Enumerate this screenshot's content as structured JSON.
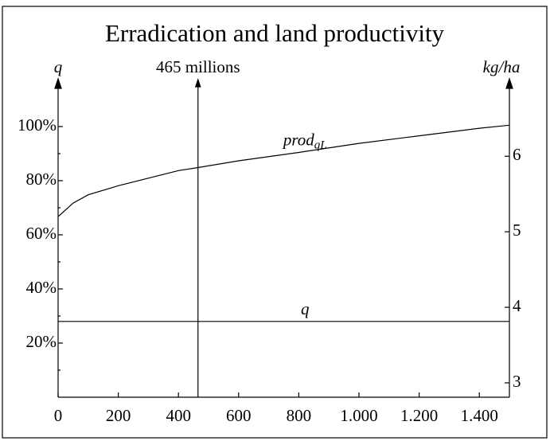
{
  "chart_data": {
    "type": "line",
    "title": "Erradication and land productivity",
    "ylabel": "q",
    "y2label": "kg/ha",
    "xlim": [
      0,
      1500
    ],
    "xticks": [
      0,
      200,
      400,
      600,
      800,
      {
        "value": 1000,
        "label": "1.000"
      },
      {
        "value": 1200,
        "label": "1.200"
      },
      {
        "value": 1400,
        "label": "1.400"
      }
    ],
    "ylim": [
      0,
      115
    ],
    "yticks": [
      {
        "value": 20,
        "label": "20%"
      },
      {
        "value": 40,
        "label": "40%"
      },
      {
        "value": 60,
        "label": "60%"
      },
      {
        "value": 80,
        "label": "80%"
      },
      {
        "value": 100,
        "label": "100%"
      }
    ],
    "yminorticks": [
      10,
      30,
      50,
      70,
      90
    ],
    "y2lim": [
      2.81,
      6.93
    ],
    "y2ticks": [
      3,
      4,
      5,
      6
    ],
    "color": "#000000",
    "series": [
      {
        "name": "prod",
        "name_subscript": "qL",
        "axis": "y2",
        "color": "#000000",
        "x": [
          0,
          50,
          100,
          200,
          400,
          465,
          600,
          800,
          1000,
          1200,
          1400,
          1500
        ],
        "values": [
          5.2,
          5.38,
          5.49,
          5.61,
          5.81,
          5.85,
          5.94,
          6.05,
          6.17,
          6.27,
          6.37,
          6.41
        ]
      },
      {
        "name": "q",
        "axis": "y",
        "color": "#000000",
        "x": [
          0,
          1500
        ],
        "values": [
          28,
          28
        ]
      }
    ],
    "annotations": [
      {
        "x": 465,
        "text": "465 millions"
      }
    ]
  }
}
